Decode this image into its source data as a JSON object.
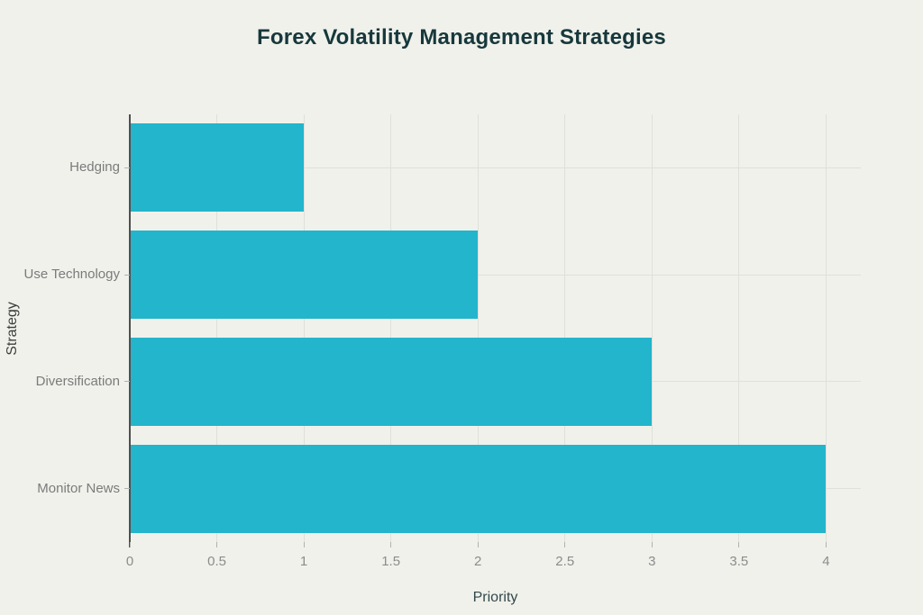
{
  "chart_data": {
    "type": "bar",
    "orientation": "horizontal",
    "title": "Forex Volatility Management Strategies",
    "xlabel": "Priority",
    "ylabel": "Strategy",
    "categories": [
      "Hedging",
      "Use Technology",
      "Diversification",
      "Monitor News"
    ],
    "values": [
      1,
      2,
      3,
      4
    ],
    "x_tick_labels": [
      "0",
      "0.5",
      "1",
      "1.5",
      "2",
      "2.5",
      "3",
      "3.5",
      "4"
    ],
    "x_tick_values": [
      0,
      0.5,
      1,
      1.5,
      2,
      2.5,
      3,
      3.5,
      4
    ],
    "xlim": [
      0,
      4.2
    ],
    "grid": true,
    "legend_position": "none"
  },
  "colors": {
    "background": "#f0f1eb",
    "bar": "#23b5cb",
    "grid": "#dfe0da",
    "axis_line": "#4f4f4f",
    "tick_mark": "#b3b3ad",
    "tick_label": "#8c8c8c",
    "category_label": "#7b7b7b",
    "title": "#17383c",
    "axis_title": "#31474a"
  }
}
